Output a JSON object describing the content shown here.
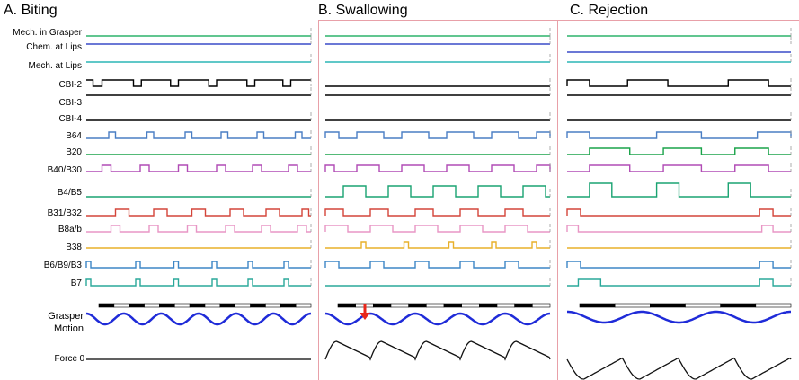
{
  "panels": [
    {
      "title": "A. Biting"
    },
    {
      "title": "B. Swallowing"
    },
    {
      "title": "C. Rejection"
    }
  ],
  "rows": [
    {
      "label": "Mech. in Grasper",
      "color": "#2db36b"
    },
    {
      "label": "Chem. at Lips",
      "color": "#3a4bc8"
    },
    {
      "label": "Mech. at Lips",
      "color": "#2bb5b5"
    },
    {
      "label": "CBI-2",
      "color": "#000000"
    },
    {
      "label": "CBI-3",
      "color": "#000000"
    },
    {
      "label": "CBI-4",
      "color": "#000000"
    },
    {
      "label": "B64",
      "color": "#4a7ec4"
    },
    {
      "label": "B20",
      "color": "#1aa34a"
    },
    {
      "label": "B40/B30",
      "color": "#b14bb5"
    },
    {
      "label": "B4/B5",
      "color": "#1aa372"
    },
    {
      "label": "B31/B32",
      "color": "#d4453a"
    },
    {
      "label": "B8a/b",
      "color": "#e896c5"
    },
    {
      "label": "B38",
      "color": "#e8b02a"
    },
    {
      "label": "B6/B9/B3",
      "color": "#3d86c6"
    },
    {
      "label": "B7",
      "color": "#2aa89a"
    }
  ],
  "grasper": {
    "label_line1": "Grasper",
    "label_line2": "Motion",
    "color": "#1f2bd8"
  },
  "force": {
    "label": "Force",
    "zero_label": "0"
  },
  "annotation": {
    "marker": "red-down-arrow",
    "color": "#e8261a"
  },
  "panel_box_color": "#e8a0a8"
}
